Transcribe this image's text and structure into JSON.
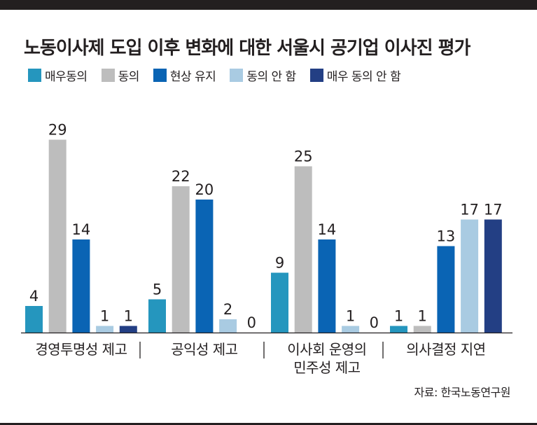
{
  "title": "노동이사제 도입 이후 변화에 대한 서울시 공기업 이사진 평가",
  "source": "자료: 한국노동연구원",
  "chart_data": {
    "type": "bar",
    "title": "노동이사제 도입 이후 변화에 대한 서울시 공기업 이사진 평가",
    "categories": [
      [
        "경영투명성 제고"
      ],
      [
        "공익성 제고"
      ],
      [
        "이사회 운영의",
        "민주성 제고"
      ],
      [
        "의사결정 지연"
      ]
    ],
    "series": [
      {
        "name": "매우동의",
        "color": "#2596be",
        "values": [
          4,
          5,
          9,
          1
        ]
      },
      {
        "name": "동의",
        "color": "#bdbdbd",
        "values": [
          29,
          22,
          25,
          1
        ]
      },
      {
        "name": "현상 유지",
        "color": "#0a64b4",
        "values": [
          14,
          20,
          14,
          13
        ]
      },
      {
        "name": "동의 안 함",
        "color": "#a9cbe2",
        "values": [
          1,
          2,
          1,
          17
        ]
      },
      {
        "name": "매우 동의 안 함",
        "color": "#233f84",
        "values": [
          1,
          0,
          0,
          17
        ]
      }
    ],
    "ylim": [
      0,
      30
    ],
    "legend_position": "top",
    "grid": false,
    "xlabel": "",
    "ylabel": ""
  }
}
